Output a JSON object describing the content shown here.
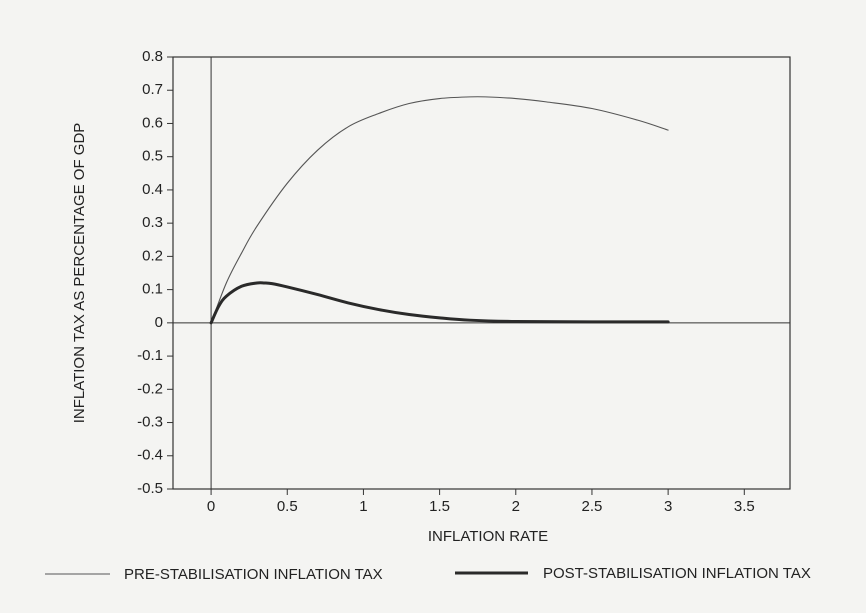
{
  "chart_data": {
    "type": "line",
    "xlabel": "INFLATION RATE",
    "ylabel": "INFLATION TAX AS PERCENTAGE OF GDP",
    "xlim": [
      -0.25,
      3.8
    ],
    "ylim": [
      -0.5,
      0.8
    ],
    "x_ticks": [
      "0",
      "0.5",
      "1",
      "1.5",
      "2",
      "2.5",
      "3",
      "3.5"
    ],
    "y_ticks": [
      "0.8",
      "0.7",
      "0.6",
      "0.5",
      "0.4",
      "0.3",
      "0.2",
      "0.1",
      "0",
      "-0.1",
      "-0.2",
      "-0.3",
      "-0.4",
      "-0.5"
    ],
    "grid": false,
    "legend_position": "bottom",
    "series": [
      {
        "name": "PRE-STABILISATION INFLATION TAX",
        "color": "#555555",
        "style": "thin",
        "x": [
          0,
          0.1,
          0.2,
          0.3,
          0.5,
          0.7,
          0.9,
          1.1,
          1.3,
          1.5,
          1.7,
          1.8,
          2.0,
          2.2,
          2.5,
          2.8,
          3.0
        ],
        "y": [
          0,
          0.12,
          0.21,
          0.29,
          0.42,
          0.52,
          0.59,
          0.63,
          0.66,
          0.675,
          0.68,
          0.68,
          0.675,
          0.665,
          0.645,
          0.61,
          0.58
        ]
      },
      {
        "name": "POST-STABILISATION INFLATION TAX",
        "color": "#2a2a2a",
        "style": "thick",
        "x": [
          0,
          0.05,
          0.1,
          0.2,
          0.3,
          0.35,
          0.4,
          0.5,
          0.7,
          0.9,
          1.1,
          1.3,
          1.5,
          1.7,
          2.0,
          2.5,
          3.0
        ],
        "y": [
          0,
          0.05,
          0.08,
          0.11,
          0.12,
          0.12,
          0.118,
          0.108,
          0.085,
          0.06,
          0.04,
          0.025,
          0.015,
          0.008,
          0.004,
          0.003,
          0.003
        ]
      }
    ]
  }
}
